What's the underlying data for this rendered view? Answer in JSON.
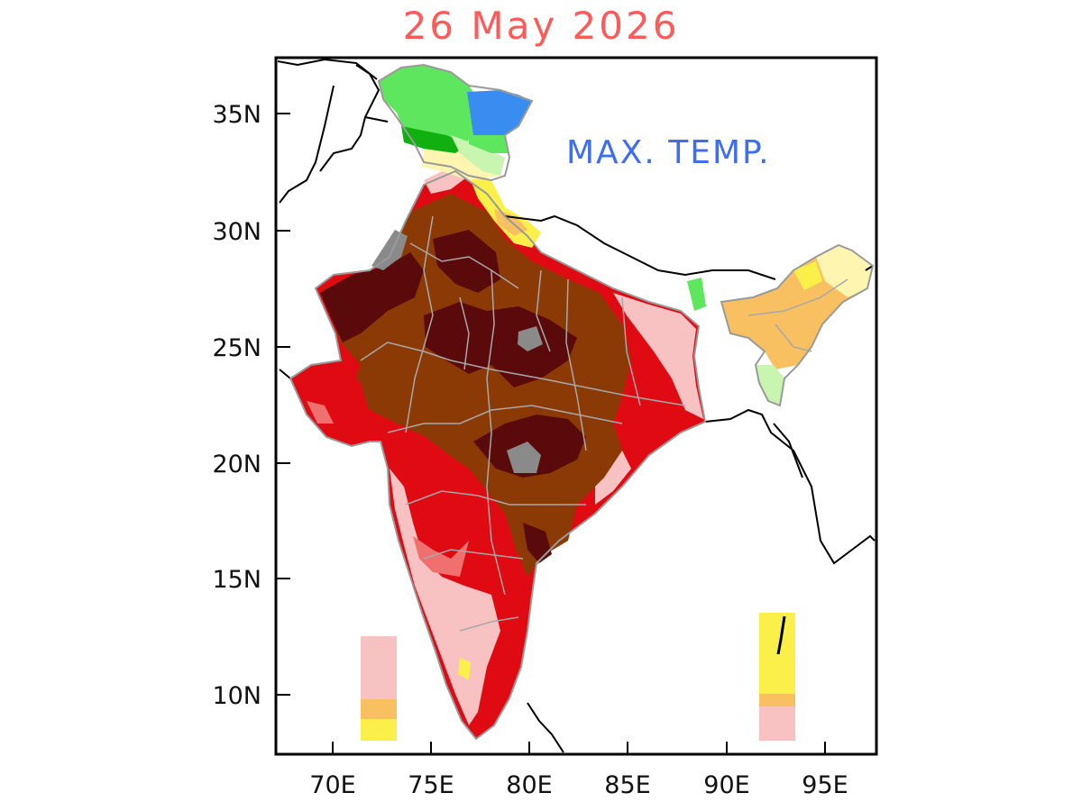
{
  "title": "26 May 2026",
  "overlay_label": "MAX. TEMP.",
  "axes": {
    "lat_ticks": [
      "35N",
      "30N",
      "25N",
      "20N",
      "15N",
      "10N"
    ],
    "lon_ticks": [
      "70E",
      "75E",
      "80E",
      "85E",
      "90E",
      "95E"
    ]
  },
  "colors": {
    "title": "#ff5a5a",
    "label": "#3f6df0",
    "very_hot": "#5a0a0a",
    "hot_brown": "#8b3a06",
    "red": "#e00a12",
    "light_red": "#f07070",
    "pink": "#f9c2c2",
    "orange": "#f8c060",
    "yellow": "#fbf04a",
    "pale_yellow": "#fdf5b0",
    "light_green": "#c8f5b0",
    "green": "#5ee65e",
    "dark_green": "#10b010",
    "blue": "#3a8df0",
    "gray": "#8a8a8a",
    "border": "#000000",
    "state_lines": "#a8a8a8"
  }
}
